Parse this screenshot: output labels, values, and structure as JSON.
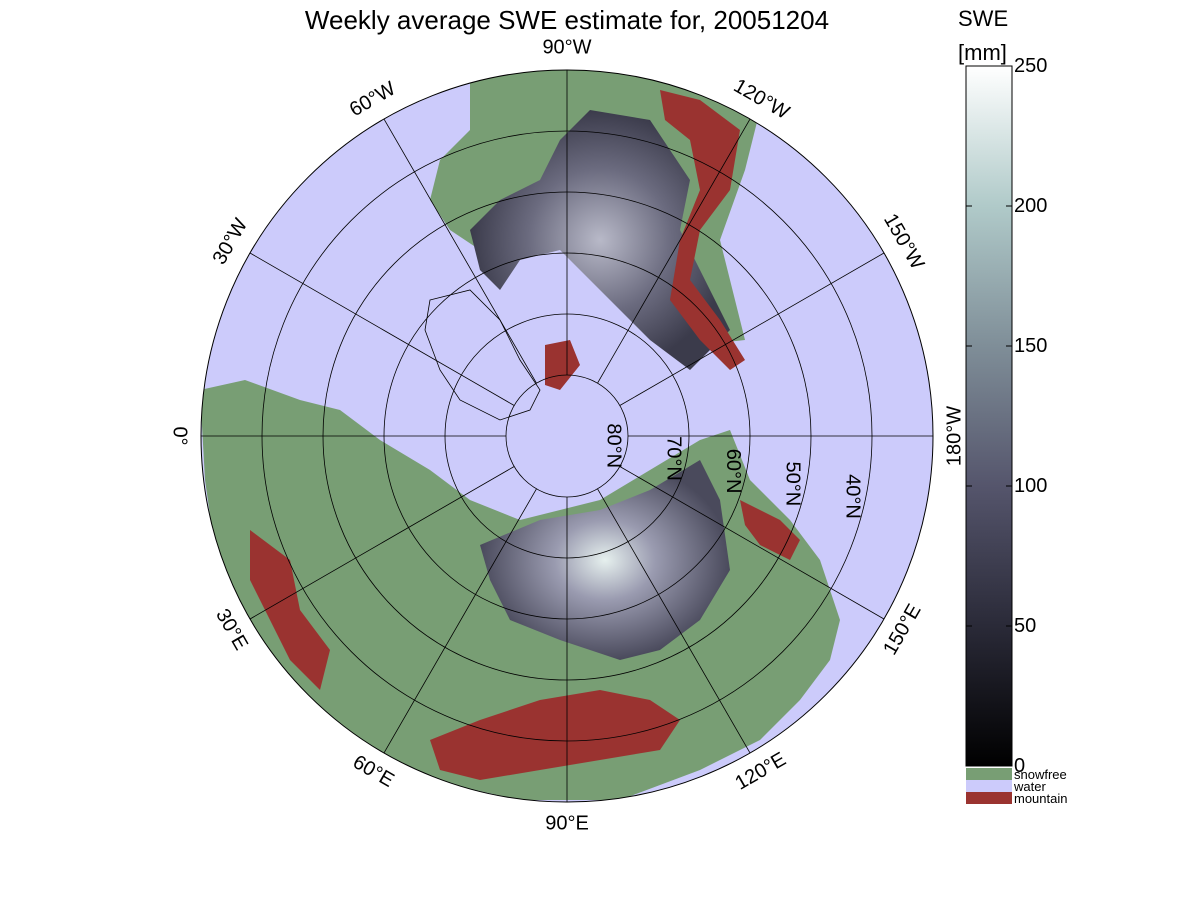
{
  "title": "Weekly average SWE estimate for, 20051204",
  "map": {
    "longitude_labels": [
      {
        "text": "90°W",
        "lon": -90
      },
      {
        "text": "120°W",
        "lon": -120
      },
      {
        "text": "150°W",
        "lon": -150
      },
      {
        "text": "180°W",
        "lon": 180
      },
      {
        "text": "150°E",
        "lon": 150
      },
      {
        "text": "120°E",
        "lon": 120
      },
      {
        "text": "90°E",
        "lon": 90
      },
      {
        "text": "60°E",
        "lon": 60
      },
      {
        "text": "30°E",
        "lon": 30
      },
      {
        "text": "0°",
        "lon": 0
      },
      {
        "text": "30°W",
        "lon": -30
      },
      {
        "text": "60°W",
        "lon": -60
      }
    ],
    "latitude_labels": [
      "80°N",
      "70°N",
      "60°N",
      "50°N",
      "40°N"
    ],
    "latitude_circles": [
      80,
      70,
      60,
      50,
      40
    ],
    "colors": {
      "snowfree": "#789e74",
      "water": "#cccbfb",
      "mountain": "#9a3330"
    }
  },
  "colorbar": {
    "header_line1": "SWE",
    "header_line2": "[mm]",
    "ticks": [
      0,
      50,
      100,
      150,
      200,
      250
    ],
    "categories": [
      {
        "label": "snowfree",
        "color": "#789e74"
      },
      {
        "label": "water",
        "color": "#cccbfb"
      },
      {
        "label": "mountain",
        "color": "#9a3330"
      }
    ]
  }
}
